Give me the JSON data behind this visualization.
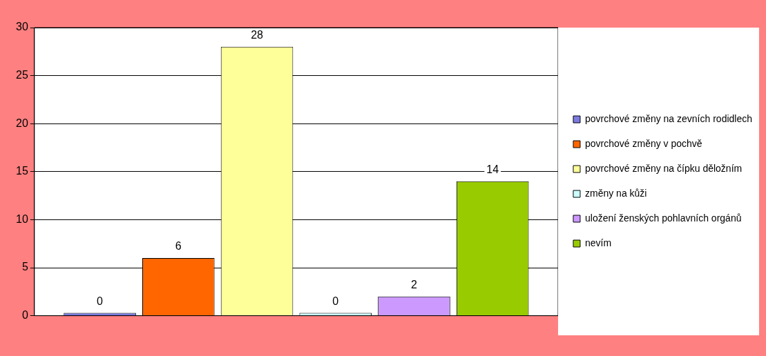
{
  "chart_data": {
    "type": "bar",
    "categories": [
      null
    ],
    "series": [
      {
        "name": "povrchové změny na zevních rodidlech",
        "color": "#7b7be0",
        "values": [
          0
        ]
      },
      {
        "name": "povrchové změny v pochvě",
        "color": "#ff6600",
        "values": [
          6
        ]
      },
      {
        "name": "povrchové změny na čípku děložním",
        "color": "#ffff99",
        "values": [
          28
        ]
      },
      {
        "name": "změny na kůži",
        "color": "#ccffff",
        "values": [
          0
        ]
      },
      {
        "name": "uložení ženských pohlavních orgánů",
        "color": "#cc99ff",
        "values": [
          2
        ]
      },
      {
        "name": "nevím",
        "color": "#99cc00",
        "values": [
          14
        ]
      }
    ],
    "ylim": [
      0,
      30
    ],
    "yticks": [
      0,
      5,
      10,
      15,
      20,
      25,
      30
    ],
    "grid": "y",
    "legend": "right",
    "data_labels": true
  }
}
